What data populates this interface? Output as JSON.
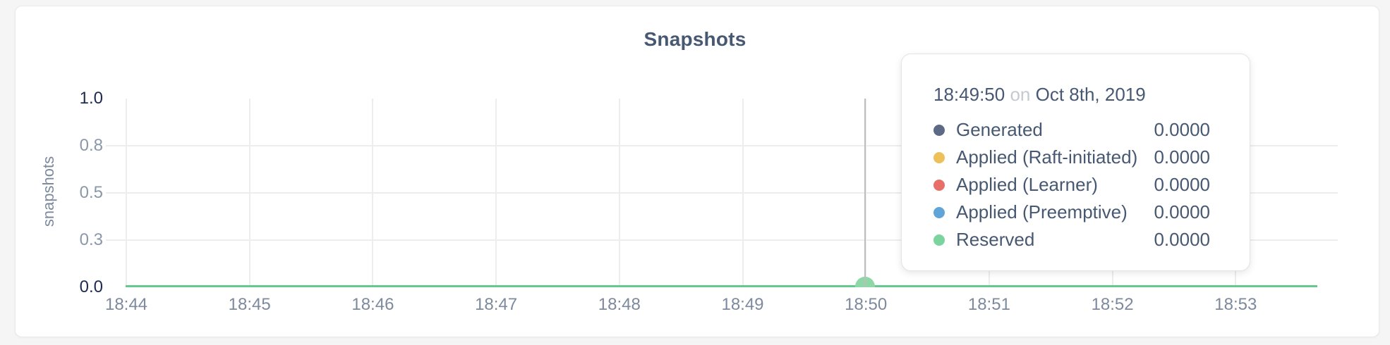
{
  "card": {
    "title": "Snapshots"
  },
  "colors": {
    "generated": "#5c6a85",
    "applied_raft": "#edc05a",
    "applied_learner": "#e86f67",
    "applied_preemptive": "#61a4d8",
    "reserved": "#79d59d",
    "reserved_line": "#65c98e",
    "hover_dot": "#8ed7a6",
    "crosshair": "#bdbdbd",
    "grid": "#ededed",
    "tick_text": "#7d8a9e",
    "tick_text_emph": "#1c2b4d",
    "title_text": "#475872"
  },
  "chart_data": {
    "type": "line",
    "title": "Snapshots",
    "xlabel": "",
    "ylabel": "snapshots",
    "ylim": [
      0.0,
      1.0
    ],
    "grid": true,
    "legend_position": "none",
    "x_ticks": [
      "18:44",
      "18:45",
      "18:46",
      "18:47",
      "18:48",
      "18:49",
      "18:50",
      "18:51",
      "18:52",
      "18:53"
    ],
    "y_ticks": [
      {
        "label": "1.0",
        "emphasized": true
      },
      {
        "label": "0.8",
        "emphasized": false
      },
      {
        "label": "0.5",
        "emphasized": false
      },
      {
        "label": "0.3",
        "emphasized": false
      },
      {
        "label": "0.0",
        "emphasized": true
      }
    ],
    "series": [
      {
        "name": "Generated",
        "color": "#5c6a85",
        "values": [
          0,
          0,
          0,
          0,
          0,
          0,
          0,
          0,
          0,
          0
        ]
      },
      {
        "name": "Applied (Raft-initiated)",
        "color": "#edc05a",
        "values": [
          0,
          0,
          0,
          0,
          0,
          0,
          0,
          0,
          0,
          0
        ]
      },
      {
        "name": "Applied (Learner)",
        "color": "#e86f67",
        "values": [
          0,
          0,
          0,
          0,
          0,
          0,
          0,
          0,
          0,
          0
        ]
      },
      {
        "name": "Applied (Preemptive)",
        "color": "#61a4d8",
        "values": [
          0,
          0,
          0,
          0,
          0,
          0,
          0,
          0,
          0,
          0
        ]
      },
      {
        "name": "Reserved",
        "color": "#79d59d",
        "values": [
          0,
          0,
          0,
          0,
          0,
          0,
          0,
          0,
          0,
          0
        ]
      }
    ],
    "hover_point": {
      "time": "18:49:50",
      "value": 0.0,
      "series": "Reserved"
    }
  },
  "tooltip": {
    "time": "18:49:50",
    "connector": "on",
    "date": "Oct 8th, 2019",
    "rows": [
      {
        "label": "Generated",
        "value": "0.0000",
        "color": "#5c6a85"
      },
      {
        "label": "Applied (Raft-initiated)",
        "value": "0.0000",
        "color": "#edc05a"
      },
      {
        "label": "Applied (Learner)",
        "value": "0.0000",
        "color": "#e86f67"
      },
      {
        "label": "Applied (Preemptive)",
        "value": "0.0000",
        "color": "#61a4d8"
      },
      {
        "label": "Reserved",
        "value": "0.0000",
        "color": "#79d59d"
      }
    ]
  }
}
